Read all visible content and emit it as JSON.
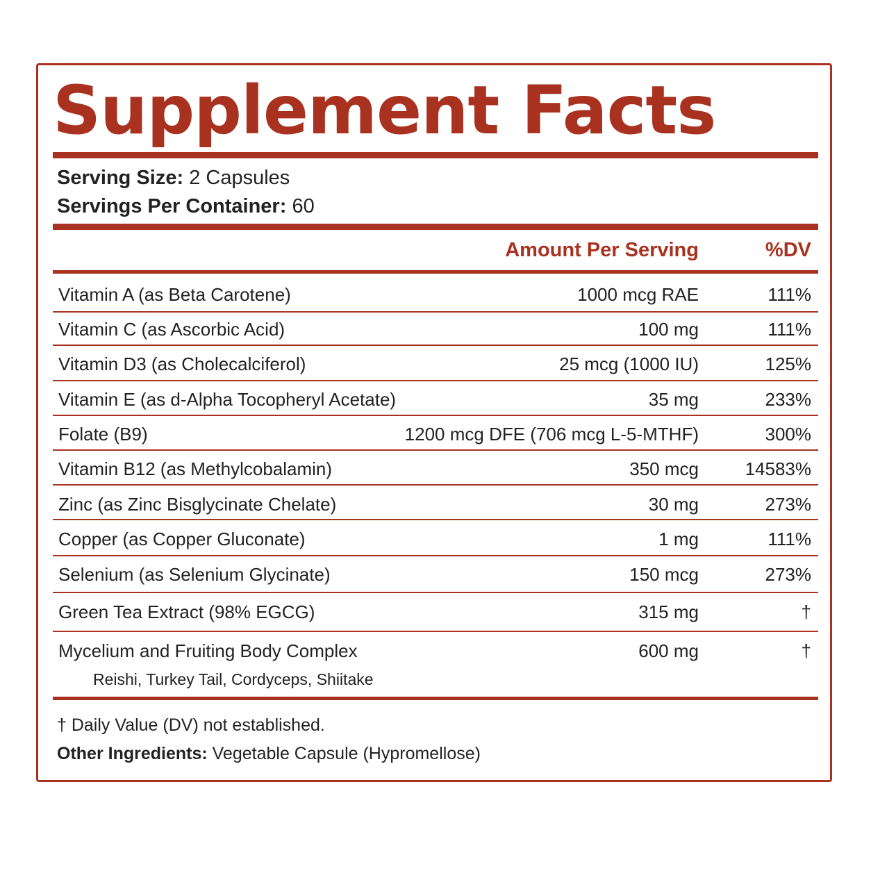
{
  "label": {
    "title": "Supplement Facts",
    "serving_size_label": "Serving Size:",
    "serving_size_value": "2 Capsules",
    "servings_per_container_label": "Servings Per Container:",
    "servings_per_container_value": "60",
    "amount_header": "Amount Per Serving",
    "dv_header": "%DV",
    "rows": [
      {
        "name": "Vitamin A (as Beta Carotene)",
        "amount": "1000 mcg RAE",
        "dv": "111%"
      },
      {
        "name": "Vitamin C (as Ascorbic Acid)",
        "amount": "100 mg",
        "dv": "111%"
      },
      {
        "name": "Vitamin D3 (as Cholecalciferol)",
        "amount": "25 mcg (1000 IU)",
        "dv": "125%"
      },
      {
        "name": "Vitamin E (as d-Alpha Tocopheryl Acetate)",
        "amount": "35 mg",
        "dv": "233%"
      },
      {
        "name": "Folate (B9)",
        "amount": "1200 mcg DFE (706 mcg L-5-MTHF)",
        "dv": "300%"
      },
      {
        "name": "Vitamin B12 (as Methylcobalamin)",
        "amount": "350 mcg",
        "dv": "14583%"
      },
      {
        "name": "Zinc (as Zinc Bisglycinate Chelate)",
        "amount": "30 mg",
        "dv": "273%"
      },
      {
        "name": "Copper (as Copper Gluconate)",
        "amount": "1 mg",
        "dv": "111%"
      },
      {
        "name": "Selenium (as Selenium Glycinate)",
        "amount": "150 mcg",
        "dv": "273%"
      },
      {
        "name": "Green Tea Extract (98% EGCG)",
        "amount": "315 mg",
        "dv": "†"
      },
      {
        "name": "Mycelium and Fruiting Body Complex",
        "sub": "Reishi, Turkey Tail, Cordyceps, Shiitake",
        "amount": "600 mg",
        "dv": "†"
      }
    ],
    "footnote_dv": "† Daily Value (DV) not established.",
    "other_ingredients_label": "Other Ingredients:",
    "other_ingredients_value": "Vegetable Capsule (Hypromellose)"
  },
  "colors": {
    "accent": "#a8321f",
    "text": "#222222",
    "background": "#ffffff"
  }
}
